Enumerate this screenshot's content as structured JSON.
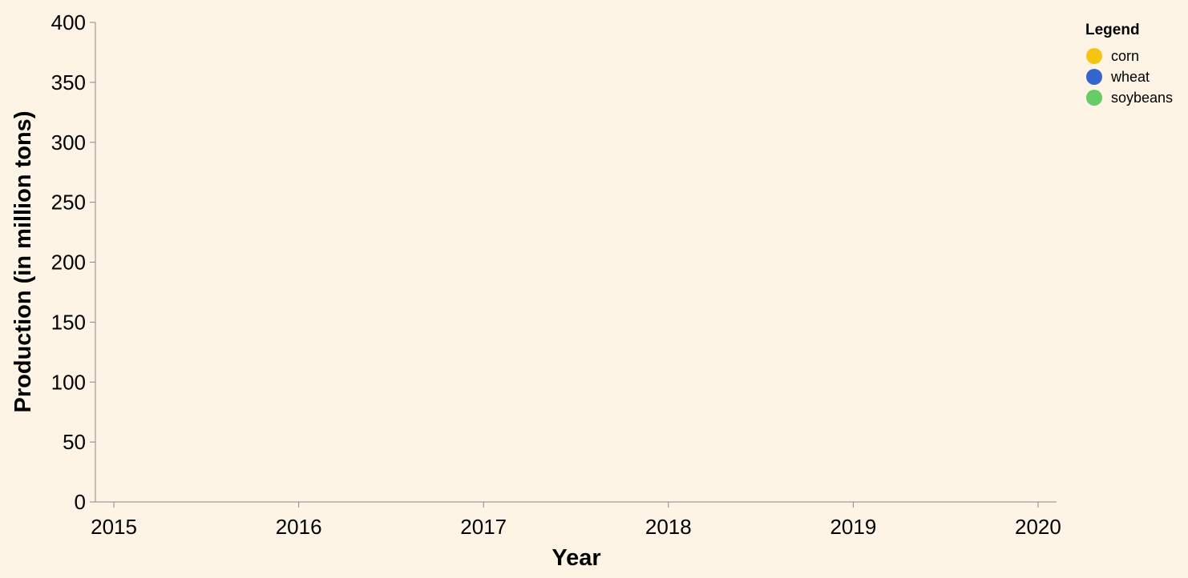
{
  "chart_data": {
    "type": "line",
    "title": "",
    "xlabel": "Year",
    "ylabel": "Production (in million tons)",
    "x": [
      2015,
      2016,
      2017,
      2018,
      2019,
      2020
    ],
    "x_tick_labels": [
      "2015",
      "2016",
      "2017",
      "2018",
      "2019",
      "2020"
    ],
    "y_ticks": [
      0,
      50,
      100,
      150,
      200,
      250,
      300,
      350,
      400
    ],
    "ylim": [
      0,
      400
    ],
    "xlim": [
      2014.9,
      2020.1
    ],
    "grid": false,
    "legend": {
      "title": "Legend",
      "placement": "top-right",
      "entries": [
        {
          "label": "corn",
          "color": "#f6c513"
        },
        {
          "label": "wheat",
          "color": "#3366cc"
        },
        {
          "label": "soybeans",
          "color": "#66cc66"
        }
      ]
    },
    "series": []
  },
  "colors": {
    "background": "#fef4e6",
    "axis": "#888888"
  }
}
